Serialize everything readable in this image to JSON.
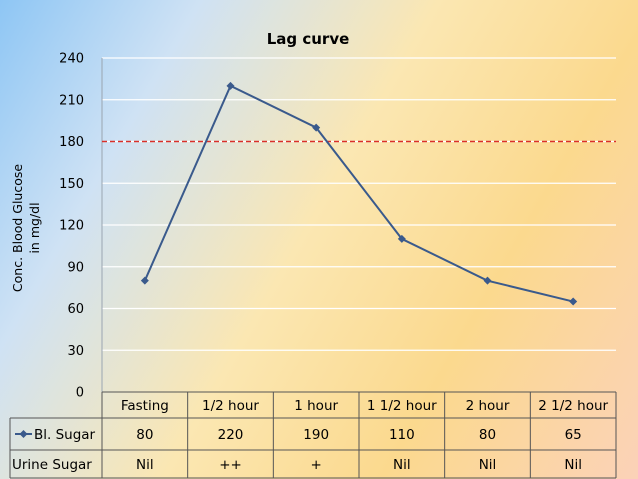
{
  "chart_data": {
    "type": "line",
    "title": "Lag curve",
    "ylabel_lines": [
      "Conc. Blood Glucose",
      "in mg/dl"
    ],
    "ylim": [
      0,
      240
    ],
    "yticks": [
      "0",
      "30",
      "60",
      "90",
      "120",
      "150",
      "180",
      "210",
      "240"
    ],
    "categories": [
      "Fasting",
      "1/2 hour",
      "1 hour",
      "1 1/2 hour",
      "2 hour",
      "2 1/2 hour"
    ],
    "series": [
      {
        "name": "Bl. Sugar",
        "values": [
          80,
          220,
          190,
          110,
          80,
          65
        ],
        "labels": [
          "80",
          "220",
          "190",
          "110",
          "80",
          "65"
        ]
      }
    ],
    "threshold": 180,
    "grid": true,
    "legend": "data-table",
    "urine_row": {
      "name": "Urine Sugar",
      "values": [
        "Nil",
        "++",
        "+",
        "Nil",
        "Nil",
        "Nil"
      ]
    },
    "colors": {
      "series": "#3a5a8c",
      "threshold": "#d9302a",
      "grid": "#ffffff",
      "border": "#555555"
    }
  }
}
